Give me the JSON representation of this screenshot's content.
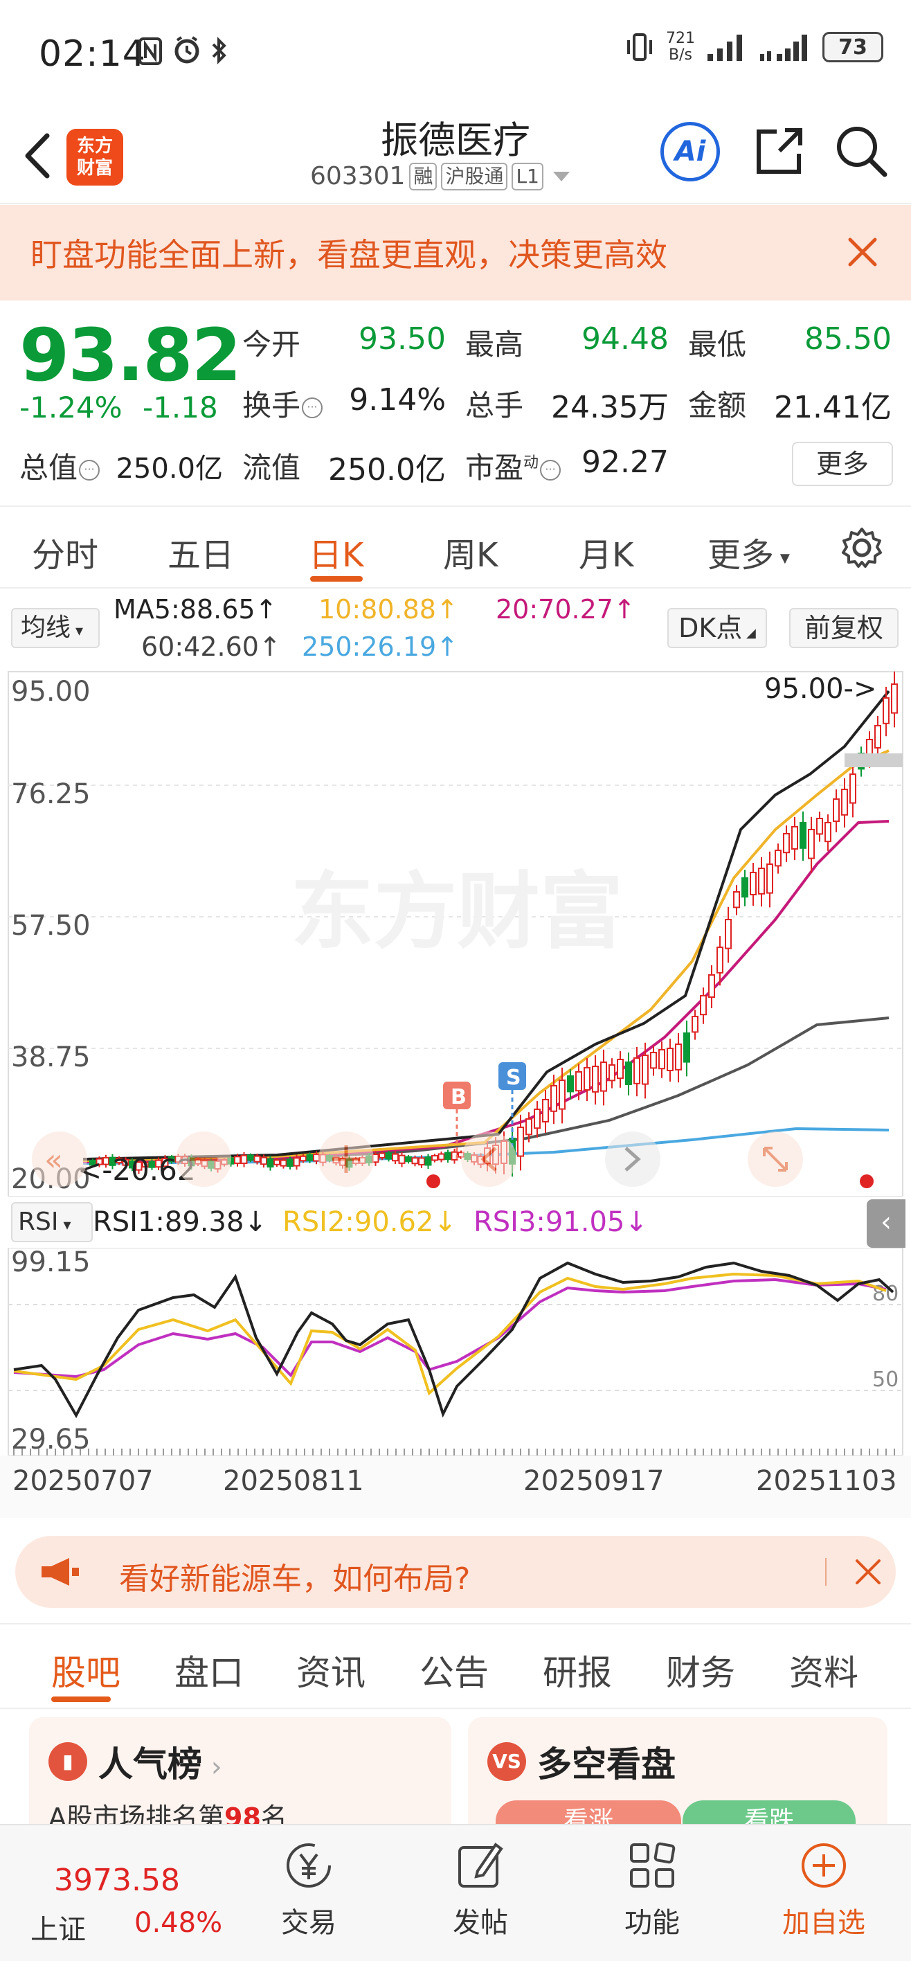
{
  "status_bar": {
    "time": "02:14",
    "net_speed_value": "721",
    "net_speed_unit": "B/s",
    "battery": "73"
  },
  "header": {
    "logo_line1": "东方",
    "logo_line2": "财富",
    "stock_name": "振德医疗",
    "stock_code": "603301",
    "tags": [
      "融",
      "沪股通",
      "L1"
    ],
    "ai_label": "Ai"
  },
  "banner": {
    "text": "盯盘功能全面上新，看盘更直观，决策更高效"
  },
  "quote": {
    "price": "93.82",
    "change_pct": "-1.24%",
    "change_abs": "-1.18",
    "open_label": "今开",
    "open": "93.50",
    "high_label": "最高",
    "high": "94.48",
    "low_label": "最低",
    "low": "85.50",
    "turnover_label": "换手",
    "turnover": "9.14%",
    "volume_label": "总手",
    "volume": "24.35万",
    "amount_label": "金额",
    "amount": "21.41亿",
    "total_value_label": "总值",
    "total_value": "250.0亿",
    "float_value_label": "流值",
    "float_value": "250.0亿",
    "pe_label": "市盈",
    "pe_sup": "动",
    "pe": "92.27",
    "more_label": "更多"
  },
  "tabs": {
    "items": [
      "分时",
      "五日",
      "日K",
      "周K",
      "月K",
      "更多"
    ],
    "active": "日K"
  },
  "ma_bar": {
    "selector": "均线",
    "ma5": "MA5:88.65↑",
    "ma10": "10:80.88↑",
    "ma20": "20:70.27↑",
    "ma60": "60:42.60↑",
    "ma250": "250:26.19↑",
    "dk_label": "DK点",
    "fq_label": "前复权",
    "colors": {
      "ma5": "#222222",
      "ma10": "#f0b429",
      "ma20": "#c51a7a",
      "ma60": "#555555",
      "ma250": "#4aa8e0"
    }
  },
  "kline": {
    "y_labels": [
      "95.00",
      "76.25",
      "57.50",
      "38.75",
      "20.00"
    ],
    "max_marker": "95.00->",
    "min_marker": "<-20.62",
    "watermark": "东方财富",
    "b_marker": "B",
    "s_marker": "S"
  },
  "rsi": {
    "selector": "RSI",
    "rsi1": "RSI1:89.38↓",
    "rsi2": "RSI2:90.62↓",
    "rsi3": "RSI3:91.05↓",
    "y_top": "99.15",
    "y_bottom": "29.65",
    "ref_80": "80",
    "ref_50": "50",
    "colors": {
      "rsi1": "#222222",
      "rsi2": "#f0c020",
      "rsi3": "#c030c0"
    }
  },
  "dates": [
    "20250707",
    "20250811",
    "20250917",
    "20251103"
  ],
  "promo": {
    "text": "看好新能源车，如何布局?"
  },
  "section_tabs": {
    "items": [
      "股吧",
      "盘口",
      "资讯",
      "公告",
      "研报",
      "财务",
      "资料"
    ],
    "active": "股吧"
  },
  "cards": {
    "left_title": "人气榜",
    "left_sub_prefix": "A股市场排名第",
    "left_rank": "98",
    "left_sub_suffix": "名",
    "right_title": "多空看盘",
    "right_bull": "看涨",
    "right_bear": "看跌"
  },
  "bottom_nav": {
    "index_value": "3973.58",
    "index_name": "上证",
    "index_pct": "0.48%",
    "items": [
      "交易",
      "发帖",
      "功能",
      "加自选"
    ]
  }
}
